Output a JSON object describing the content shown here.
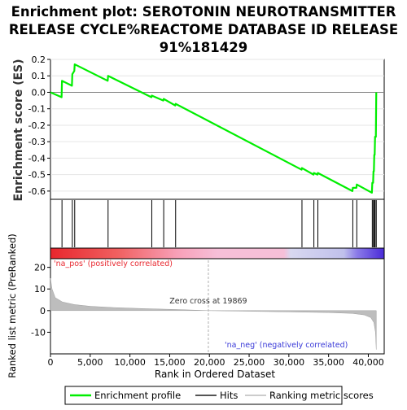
{
  "chart_data": {
    "type": "line",
    "title": "Enrichment plot: SEROTONIN NEUROTRANSMITTER RELEASE CYCLE%REACTOME DATABASE ID RELEASE 91%181429",
    "title_lines": [
      "Enrichment plot: SEROTONIN NEUROTRANSMITTER",
      "RELEASE CYCLE%REACTOME DATABASE ID RELEASE",
      "91%181429"
    ],
    "xlabel": "Rank in Ordered Dataset",
    "xlim": [
      0,
      42000
    ],
    "x_ticks": [
      0,
      5000,
      10000,
      15000,
      20000,
      25000,
      30000,
      35000,
      40000
    ],
    "x_tick_labels": [
      "0",
      "5,000",
      "10,000",
      "15,000",
      "20,000",
      "25,000",
      "30,000",
      "35,000",
      "40,000"
    ],
    "es_panel": {
      "ylabel": "Enrichment score (ES)",
      "ylim": [
        -0.65,
        0.2
      ],
      "y_ticks": [
        0.2,
        0.1,
        0.0,
        -0.1,
        -0.2,
        -0.3,
        -0.4,
        -0.5,
        -0.6
      ],
      "y_tick_labels": [
        "0.2",
        "0.1",
        "0.0",
        "-0.1",
        "-0.2",
        "-0.3",
        "-0.4",
        "-0.5",
        "-0.6"
      ],
      "series": [
        {
          "name": "Enrichment profile",
          "color": "#00ee00",
          "x": [
            0,
            1400,
            1450,
            2700,
            2750,
            3000,
            3050,
            7200,
            7250,
            12700,
            12750,
            14200,
            14250,
            15700,
            15750,
            31600,
            31650,
            33100,
            33150,
            33600,
            33650,
            38000,
            38050,
            38500,
            38550,
            40450,
            40500,
            40600,
            40650,
            40700,
            40750,
            40800,
            40850,
            40950,
            41000
          ],
          "y": [
            0.0,
            -0.03,
            0.07,
            0.04,
            0.11,
            0.13,
            0.17,
            0.07,
            0.1,
            -0.03,
            -0.02,
            -0.05,
            -0.04,
            -0.08,
            -0.07,
            -0.47,
            -0.46,
            -0.5,
            -0.49,
            -0.5,
            -0.49,
            -0.6,
            -0.58,
            -0.58,
            -0.56,
            -0.61,
            -0.55,
            -0.55,
            -0.48,
            -0.48,
            -0.38,
            -0.38,
            -0.27,
            -0.27,
            0.0
          ]
        }
      ]
    },
    "hits": {
      "name": "Hits",
      "color": "#000000",
      "positions": [
        1450,
        2750,
        3050,
        7250,
        12750,
        14250,
        15750,
        31650,
        33150,
        33650,
        38050,
        38550,
        40500,
        40650,
        40750,
        40850,
        41000
      ]
    },
    "ranking_bar": {
      "pos_color": "#e8272e",
      "neutral_color": "#f6bfd8",
      "neg_color": "#4a2bd8",
      "label_pos": "'na_pos' (positively correlated)",
      "label_neg": "'na_neg' (negatively correlated)"
    },
    "metric_panel": {
      "ylabel": "Ranked list metric (PreRanked)",
      "ylim": [
        -20,
        24
      ],
      "y_ticks": [
        20,
        10,
        0,
        -10
      ],
      "y_tick_labels": [
        "20",
        "10",
        "0",
        "-10"
      ],
      "series_name": "Ranking metric scores",
      "color": "#bdbdbd",
      "x": [
        0,
        200,
        600,
        1500,
        3000,
        5000,
        8000,
        12000,
        16000,
        19869,
        19870,
        25000,
        30000,
        35000,
        38000,
        39500,
        40300,
        40700,
        40900,
        41000
      ],
      "y": [
        15,
        10,
        6,
        4,
        2.8,
        2.0,
        1.4,
        0.9,
        0.5,
        0.0,
        0.0,
        -0.3,
        -0.6,
        -0.9,
        -1.3,
        -2.0,
        -3.2,
        -5.5,
        -10,
        -18
      ],
      "zero_cross_label": "Zero cross at 19869",
      "zero_cross": 19869
    },
    "legend": {
      "placement": "bottom",
      "items": [
        "Enrichment profile",
        "Hits",
        "Ranking metric scores"
      ]
    }
  }
}
